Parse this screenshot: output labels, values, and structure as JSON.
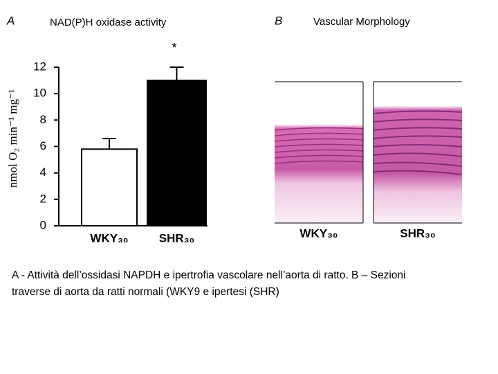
{
  "chart_data": {
    "type": "bar",
    "panel_label": "A",
    "title": "NAD(P)H oxidase activity",
    "annotation": "*",
    "y_label": "nmol O₂ min⁻¹ mg⁻¹",
    "categories": [
      "WKY₃₀",
      "SHR₃₀"
    ],
    "values": [
      5.8,
      11
    ],
    "errors": [
      0.8,
      1
    ],
    "colors": [
      "#ffffff",
      "#000000"
    ],
    "ylim": [
      0,
      12
    ],
    "yticks": [
      0,
      2,
      4,
      6,
      8,
      10,
      12
    ]
  },
  "panel_b": {
    "panel_label": "B",
    "title": "Vascular Morphology",
    "images": [
      {
        "label": "WKY₃₀"
      },
      {
        "label": "SHR₃₀"
      }
    ]
  },
  "caption": [
    "A - Attività dell’ossidasi NAPDH e ipertrofia vascolare nell’aorta di ratto. B – Sezioni",
    "traverse di aorta da ratti normali (WKY9 e ipertesi (SHR)"
  ]
}
